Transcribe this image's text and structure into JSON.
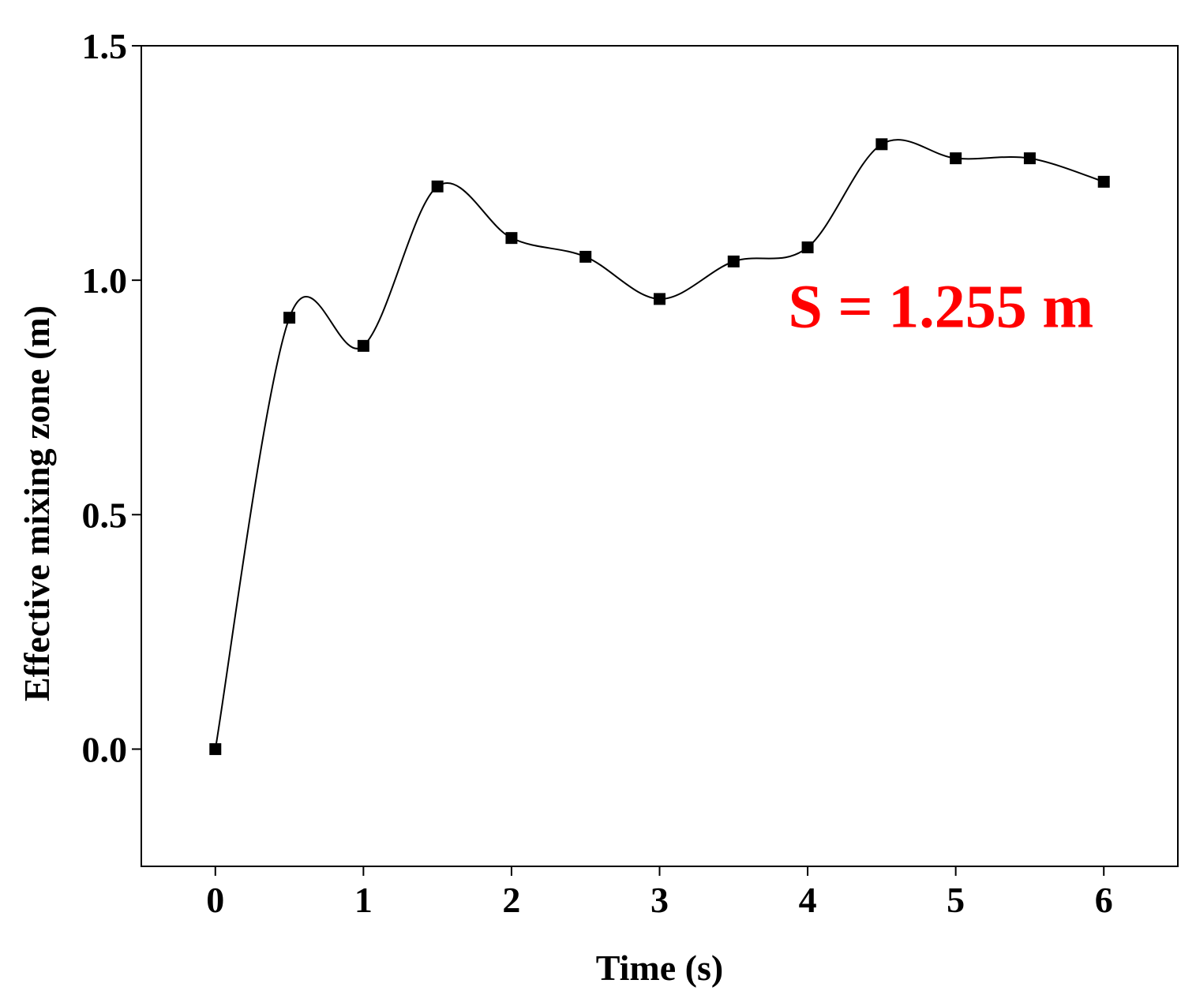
{
  "chart_data": {
    "type": "line",
    "title": "",
    "xlabel": "Time (s)",
    "ylabel": "Effective mixing zone (m)",
    "xlim": [
      -0.5,
      6.5
    ],
    "ylim": [
      -0.25,
      1.5
    ],
    "xticks": [
      0,
      1,
      2,
      3,
      4,
      5,
      6
    ],
    "xtick_labels": [
      "0",
      "1",
      "2",
      "3",
      "4",
      "5",
      "6"
    ],
    "yticks": [
      0.0,
      0.5,
      1.0,
      1.5
    ],
    "ytick_labels": [
      "0.0",
      "0.5",
      "1.0",
      "1.5"
    ],
    "grid": false,
    "legend": "none",
    "series": [
      {
        "x": [
          0,
          0.5,
          1,
          1.5,
          2,
          2.5,
          3,
          3.5,
          4,
          4.5,
          5,
          5.5,
          6
        ],
        "y": [
          0.0,
          0.92,
          0.86,
          1.2,
          1.09,
          1.05,
          0.96,
          1.04,
          1.07,
          1.29,
          1.26,
          1.26,
          1.21
        ],
        "color": "#000000",
        "marker": "square",
        "smooth": true
      }
    ],
    "annotations": [
      {
        "text": "S = 1.255 m",
        "color": "#ff0000",
        "x": 4.9,
        "y": 0.9
      }
    ]
  }
}
